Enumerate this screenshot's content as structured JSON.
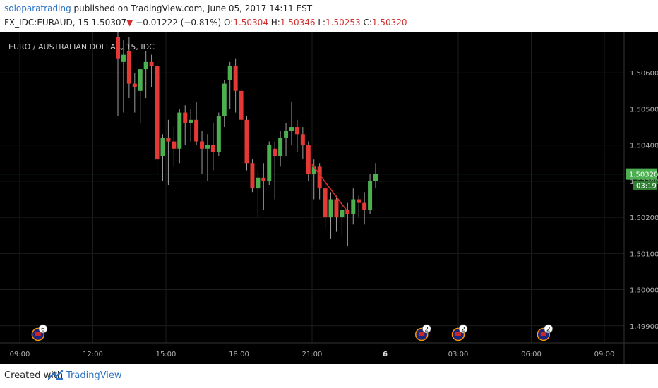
{
  "header": {
    "author": "soloparatrading",
    "published": "published on TradingView.com, June 05, 2017 14:11 EST",
    "symbol": "FX_IDC:EURAUD, 15",
    "last": "1.50307",
    "change_arrow": "▼",
    "change": "−0.01222 (−0.81%)",
    "open_label": "O:",
    "open": "1.50304",
    "high_label": "H:",
    "high": "1.50346",
    "low_label": "L:",
    "low": "1.50253",
    "close_label": "C:",
    "close": "1.50320"
  },
  "chart_data": {
    "type": "candlestick",
    "title": "EURO / AUSTRALIAN DOLLAR, 15, IDC",
    "y_ticks": [
      "1.50600",
      "1.50500",
      "1.50400",
      "1.50300",
      "1.50200",
      "1.50100",
      "1.50000",
      "1.49900"
    ],
    "ylim": [
      1.4988,
      1.507
    ],
    "x_ticks": [
      "09:00",
      "12:00",
      "15:00",
      "18:00",
      "21:00",
      "6",
      "03:00",
      "06:00",
      "09:00"
    ],
    "current_price": "1.50320",
    "countdown": "03:19",
    "up_color": "#4caf50",
    "down_color": "#e53935",
    "candles": [
      {
        "o": 1.507,
        "h": 1.5072,
        "l": 1.5048,
        "c": 1.5064
      },
      {
        "o": 1.5063,
        "h": 1.5069,
        "l": 1.5049,
        "c": 1.5065
      },
      {
        "o": 1.5066,
        "h": 1.507,
        "l": 1.5053,
        "c": 1.5057
      },
      {
        "o": 1.5057,
        "h": 1.506,
        "l": 1.5049,
        "c": 1.5056
      },
      {
        "o": 1.5055,
        "h": 1.5061,
        "l": 1.5046,
        "c": 1.5061
      },
      {
        "o": 1.5061,
        "h": 1.5066,
        "l": 1.5053,
        "c": 1.5063
      },
      {
        "o": 1.5063,
        "h": 1.5065,
        "l": 1.5056,
        "c": 1.5062
      },
      {
        "o": 1.5062,
        "h": 1.5063,
        "l": 1.5032,
        "c": 1.5036
      },
      {
        "o": 1.5037,
        "h": 1.5043,
        "l": 1.503,
        "c": 1.5042
      },
      {
        "o": 1.5042,
        "h": 1.5047,
        "l": 1.5029,
        "c": 1.5041
      },
      {
        "o": 1.5041,
        "h": 1.5045,
        "l": 1.5034,
        "c": 1.5039
      },
      {
        "o": 1.5039,
        "h": 1.505,
        "l": 1.5035,
        "c": 1.5049
      },
      {
        "o": 1.5049,
        "h": 1.5051,
        "l": 1.504,
        "c": 1.5046
      },
      {
        "o": 1.5046,
        "h": 1.505,
        "l": 1.5041,
        "c": 1.5047
      },
      {
        "o": 1.5047,
        "h": 1.5052,
        "l": 1.504,
        "c": 1.5041
      },
      {
        "o": 1.5041,
        "h": 1.5044,
        "l": 1.5032,
        "c": 1.5039
      },
      {
        "o": 1.5039,
        "h": 1.5043,
        "l": 1.503,
        "c": 1.504
      },
      {
        "o": 1.504,
        "h": 1.5046,
        "l": 1.5033,
        "c": 1.5038
      },
      {
        "o": 1.5038,
        "h": 1.5049,
        "l": 1.5037,
        "c": 1.5048
      },
      {
        "o": 1.5048,
        "h": 1.5058,
        "l": 1.5045,
        "c": 1.5057
      },
      {
        "o": 1.5058,
        "h": 1.5063,
        "l": 1.505,
        "c": 1.5062
      },
      {
        "o": 1.5062,
        "h": 1.5064,
        "l": 1.5049,
        "c": 1.5055
      },
      {
        "o": 1.5055,
        "h": 1.5056,
        "l": 1.5044,
        "c": 1.5047
      },
      {
        "o": 1.5047,
        "h": 1.5048,
        "l": 1.5033,
        "c": 1.5035
      },
      {
        "o": 1.5035,
        "h": 1.5036,
        "l": 1.5027,
        "c": 1.5028
      },
      {
        "o": 1.5028,
        "h": 1.5033,
        "l": 1.502,
        "c": 1.5031
      },
      {
        "o": 1.5031,
        "h": 1.5035,
        "l": 1.5022,
        "c": 1.503
      },
      {
        "o": 1.503,
        "h": 1.5041,
        "l": 1.5029,
        "c": 1.504
      },
      {
        "o": 1.5039,
        "h": 1.5041,
        "l": 1.5025,
        "c": 1.5037
      },
      {
        "o": 1.5037,
        "h": 1.5044,
        "l": 1.5034,
        "c": 1.5042
      },
      {
        "o": 1.5042,
        "h": 1.5046,
        "l": 1.5037,
        "c": 1.5044
      },
      {
        "o": 1.5044,
        "h": 1.5052,
        "l": 1.504,
        "c": 1.5045
      },
      {
        "o": 1.5045,
        "h": 1.5047,
        "l": 1.5038,
        "c": 1.5043
      },
      {
        "o": 1.5043,
        "h": 1.5045,
        "l": 1.5036,
        "c": 1.504
      },
      {
        "o": 1.504,
        "h": 1.5041,
        "l": 1.503,
        "c": 1.5032
      },
      {
        "o": 1.5032,
        "h": 1.5036,
        "l": 1.5025,
        "c": 1.5034
      },
      {
        "o": 1.5034,
        "h": 1.5035,
        "l": 1.5025,
        "c": 1.5028
      },
      {
        "o": 1.5028,
        "h": 1.503,
        "l": 1.5017,
        "c": 1.502
      },
      {
        "o": 1.502,
        "h": 1.5027,
        "l": 1.5014,
        "c": 1.5025
      },
      {
        "o": 1.5025,
        "h": 1.5026,
        "l": 1.5016,
        "c": 1.502
      },
      {
        "o": 1.502,
        "h": 1.5024,
        "l": 1.5015,
        "c": 1.5022
      },
      {
        "o": 1.5022,
        "h": 1.5024,
        "l": 1.5012,
        "c": 1.5021
      },
      {
        "o": 1.5021,
        "h": 1.5028,
        "l": 1.5018,
        "c": 1.5025
      },
      {
        "o": 1.5025,
        "h": 1.5026,
        "l": 1.502,
        "c": 1.5024
      },
      {
        "o": 1.5024,
        "h": 1.5027,
        "l": 1.5018,
        "c": 1.5022
      },
      {
        "o": 1.5022,
        "h": 1.5032,
        "l": 1.5021,
        "c": 1.503
      },
      {
        "o": 1.503,
        "h": 1.5035,
        "l": 1.5028,
        "c": 1.5032
      }
    ],
    "projection_line": {
      "color": "#d32f2f",
      "from": {
        "time": "21:00",
        "price": 1.50346
      },
      "to": {
        "time": "22:30",
        "price": 1.50212
      }
    },
    "events": [
      {
        "time": "01:30",
        "count": "2"
      },
      {
        "time": "03:00",
        "count": "2"
      },
      {
        "time": "06:30",
        "count": "2"
      },
      {
        "time": "09:45",
        "count": "6"
      }
    ]
  },
  "footer": {
    "created_with": "Created with",
    "brand": "TradingView",
    "brand_color": "#2d74c4"
  }
}
